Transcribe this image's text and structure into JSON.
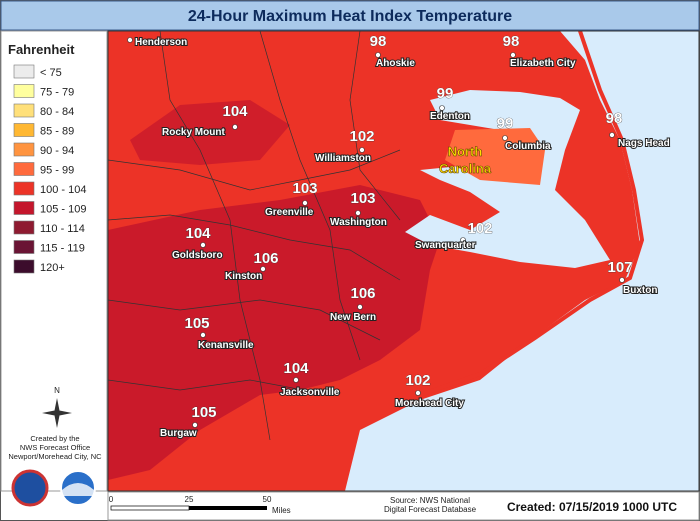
{
  "header": {
    "title": "24-Hour Maximum Heat Index Temperature"
  },
  "legend": {
    "title": "Fahrenheit",
    "items": [
      {
        "label": "< 75",
        "color": "#ececec"
      },
      {
        "label": "75 - 79",
        "color": "#ffff9e"
      },
      {
        "label": "80 - 84",
        "color": "#ffe07a"
      },
      {
        "label": "85 - 89",
        "color": "#ffb833"
      },
      {
        "label": "90 - 94",
        "color": "#ff9440"
      },
      {
        "label": "95 - 99",
        "color": "#ff6a3d"
      },
      {
        "label": "100 - 104",
        "color": "#ec3327"
      },
      {
        "label": "105 - 109",
        "color": "#c4162c"
      },
      {
        "label": "110 - 114",
        "color": "#8e1a30"
      },
      {
        "label": "115 - 119",
        "color": "#6a1434"
      },
      {
        "label": "120+",
        "color": "#3c0c2c"
      }
    ]
  },
  "cities": [
    {
      "name": "Henderson"
    },
    {
      "name": "Ahoskie",
      "value": "98"
    },
    {
      "name": "Elizabeth City",
      "value": "98"
    },
    {
      "name": "Edenton",
      "value": "99"
    },
    {
      "name": "Columbia",
      "value": "99"
    },
    {
      "name": "Nags Head",
      "value": "98"
    },
    {
      "name": "Rocky Mount",
      "value": "104"
    },
    {
      "name": "Williamston",
      "value": "102"
    },
    {
      "name": "Greenville",
      "value": "103"
    },
    {
      "name": "Washington",
      "value": "103"
    },
    {
      "name": "Swanquarter",
      "value": "102"
    },
    {
      "name": "Buxton",
      "value": "107"
    },
    {
      "name": "Goldsboro",
      "value": "104"
    },
    {
      "name": "Kinston",
      "value": "106"
    },
    {
      "name": "New Bern",
      "value": "106"
    },
    {
      "name": "Kenansville",
      "value": "105"
    },
    {
      "name": "Jacksonville",
      "value": "104"
    },
    {
      "name": "Morehead City",
      "value": "102"
    },
    {
      "name": "Burgaw",
      "value": "105"
    }
  ],
  "state_label": [
    "North",
    "Carolina"
  ],
  "compass": "N",
  "credit": [
    "Created by the",
    "NWS Forecast Office",
    "Newport/Morehead City, NC"
  ],
  "scale": {
    "labels": [
      "0",
      "25",
      "50"
    ],
    "unit": "Miles"
  },
  "source": [
    "Source: NWS National",
    "Digital Forecast Database"
  ],
  "created": "Created: 07/15/2019 1000 UTC"
}
